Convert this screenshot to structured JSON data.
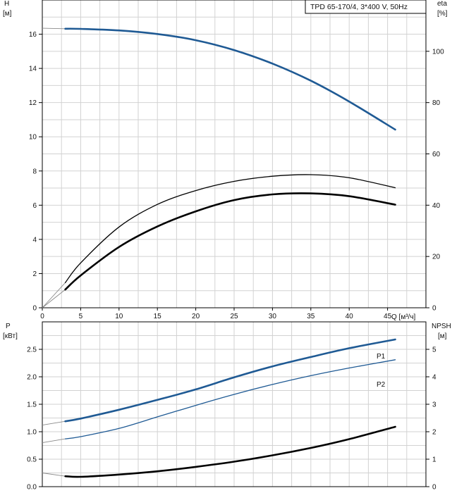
{
  "colors": {
    "blue": "#1f5a94",
    "black": "#000000",
    "grid": "#d2d2d2",
    "axis": "#000000",
    "background": "#ffffff"
  },
  "chart_data": [
    {
      "type": "line",
      "title": "TPD 65-170/4, 3*400 V, 50Hz",
      "ylabel": "H",
      "ylabel_unit": "[м]",
      "y2label": "eta",
      "y2label_unit": "[%]",
      "xlabel": "Q [м³/ч]",
      "xlim": [
        0,
        50
      ],
      "ylim": [
        0,
        18
      ],
      "y2lim": [
        0,
        120
      ],
      "xticks": [
        0,
        5,
        10,
        15,
        20,
        25,
        30,
        35,
        40,
        45
      ],
      "yticks": [
        0,
        2,
        4,
        6,
        8,
        10,
        12,
        14,
        16
      ],
      "y2ticks": [
        0,
        20,
        40,
        60,
        80,
        100
      ],
      "grid": true,
      "series": [
        {
          "id": "H",
          "axis": "left",
          "color": "blue",
          "width": "thick",
          "points": [
            [
              3,
              16.32
            ],
            [
              5,
              16.31
            ],
            [
              10,
              16.22
            ],
            [
              15,
              16.01
            ],
            [
              20,
              15.65
            ],
            [
              25,
              15.07
            ],
            [
              30,
              14.28
            ],
            [
              35,
              13.28
            ],
            [
              40,
              12.06
            ],
            [
              46,
              10.42
            ]
          ],
          "extension": [
            [
              0,
              16.35
            ],
            [
              3,
              16.32
            ]
          ]
        },
        {
          "id": "eta1",
          "axis": "right",
          "color": "black",
          "width": "thin",
          "points": [
            [
              3,
              9.8
            ],
            [
              5,
              17.5
            ],
            [
              10,
              31.5
            ],
            [
              15,
              40.3
            ],
            [
              20,
              45.7
            ],
            [
              25,
              49.3
            ],
            [
              30,
              51.3
            ],
            [
              35,
              51.9
            ],
            [
              40,
              50.7
            ],
            [
              46,
              46.8
            ]
          ],
          "extension": [
            [
              0,
              0
            ],
            [
              3,
              9.8
            ]
          ]
        },
        {
          "id": "eta2",
          "axis": "right",
          "color": "black",
          "width": "thick",
          "points": [
            [
              3,
              7.1
            ],
            [
              5,
              12.6
            ],
            [
              10,
              23.7
            ],
            [
              15,
              31.7
            ],
            [
              20,
              37.6
            ],
            [
              25,
              42.0
            ],
            [
              30,
              44.2
            ],
            [
              35,
              44.6
            ],
            [
              40,
              43.5
            ],
            [
              46,
              40.2
            ]
          ],
          "extension": [
            [
              0,
              0
            ],
            [
              3,
              7.1
            ]
          ]
        }
      ]
    },
    {
      "type": "line",
      "ylabel": "P",
      "ylabel_unit": "[кВт]",
      "y2label": "NPSH",
      "y2label_unit": "[м]",
      "xlim": [
        0,
        50
      ],
      "ylim": [
        0,
        3.0
      ],
      "y2lim": [
        0,
        6
      ],
      "yticks": [
        "0.0",
        "0.5",
        "1.0",
        "1.5",
        "2.0",
        "2.5"
      ],
      "y2ticks": [
        0,
        1,
        2,
        3,
        4,
        5
      ],
      "grid": true,
      "series": [
        {
          "id": "P1",
          "name": "P1",
          "axis": "left",
          "color": "blue",
          "width": "thick",
          "points": [
            [
              3,
              1.19
            ],
            [
              5,
              1.24
            ],
            [
              10,
              1.4
            ],
            [
              15,
              1.58
            ],
            [
              20,
              1.77
            ],
            [
              25,
              1.99
            ],
            [
              30,
              2.19
            ],
            [
              35,
              2.36
            ],
            [
              40,
              2.52
            ],
            [
              46,
              2.68
            ]
          ],
          "extension": [
            [
              0,
              1.12
            ],
            [
              3,
              1.19
            ]
          ]
        },
        {
          "id": "P2",
          "name": "P2",
          "axis": "left",
          "color": "blue",
          "width": "thin",
          "points": [
            [
              3,
              0.87
            ],
            [
              5,
              0.91
            ],
            [
              10,
              1.06
            ],
            [
              15,
              1.27
            ],
            [
              20,
              1.48
            ],
            [
              25,
              1.68
            ],
            [
              30,
              1.86
            ],
            [
              35,
              2.02
            ],
            [
              40,
              2.16
            ],
            [
              46,
              2.31
            ]
          ],
          "extension": [
            [
              0,
              0.8
            ],
            [
              3,
              0.87
            ]
          ]
        },
        {
          "id": "NPSH",
          "axis": "right",
          "color": "black",
          "width": "thick",
          "points": [
            [
              3,
              0.38
            ],
            [
              5,
              0.36
            ],
            [
              10,
              0.44
            ],
            [
              15,
              0.56
            ],
            [
              20,
              0.72
            ],
            [
              25,
              0.91
            ],
            [
              30,
              1.14
            ],
            [
              35,
              1.41
            ],
            [
              40,
              1.73
            ],
            [
              46,
              2.18
            ]
          ],
          "extension": [
            [
              0,
              0.5
            ],
            [
              3,
              0.38
            ]
          ]
        }
      ]
    }
  ]
}
